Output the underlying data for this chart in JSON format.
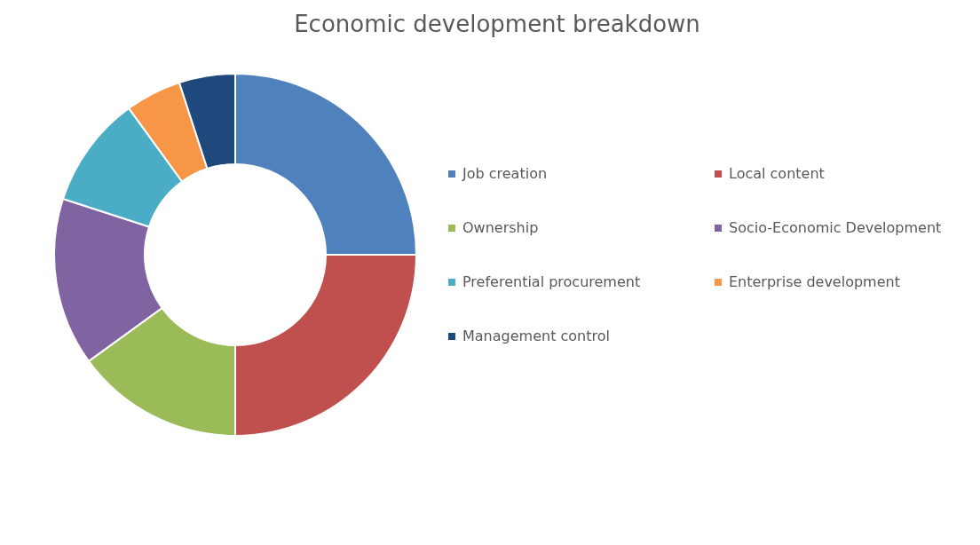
{
  "chart_data": {
    "type": "donut",
    "title": "Economic development breakdown",
    "categories": [
      "Job creation",
      "Local content",
      "Ownership",
      "Socio-Economic Development",
      "Preferential procurement",
      "Enterprise development",
      "Management control"
    ],
    "values": [
      25,
      25,
      15,
      15,
      10,
      5,
      5
    ],
    "colors": [
      "#4f81bd",
      "#c0504d",
      "#9bbb59",
      "#8064a2",
      "#4bacc6",
      "#f79646",
      "#1f497d"
    ],
    "legend": "right"
  }
}
